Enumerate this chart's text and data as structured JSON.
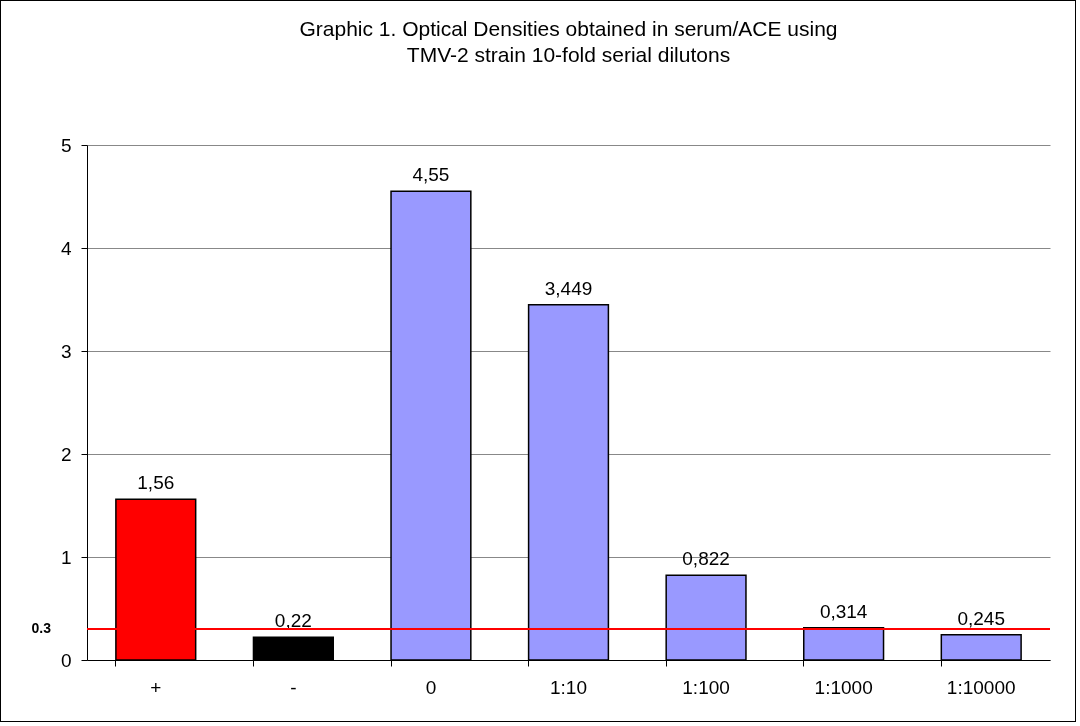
{
  "chart_data": {
    "type": "bar",
    "title": "Graphic 1. Optical Densities obtained in serum/ACE using\nTMV-2 strain 10-fold serial dilutons",
    "categories": [
      "+",
      "-",
      "0",
      "1:10",
      "1:100",
      "1:1000",
      "1:10000"
    ],
    "values": [
      1.56,
      0.22,
      4.55,
      3.449,
      0.822,
      0.314,
      0.245
    ],
    "colors": [
      "#ff0000",
      "#000000",
      "#9999ff",
      "#9999ff",
      "#9999ff",
      "#9999ff",
      "#9999ff"
    ],
    "value_labels": [
      "1,56",
      "0,22",
      "4,55",
      "3,449",
      "0,822",
      "0,314",
      "0,245"
    ],
    "ylim": [
      0,
      5
    ],
    "yticks": [
      0,
      1,
      2,
      3,
      4,
      5
    ],
    "grid": "y",
    "ref_lines": [
      {
        "axis": "y",
        "value": 0.3,
        "label": "0.3",
        "color": "#ff0000"
      }
    ]
  }
}
